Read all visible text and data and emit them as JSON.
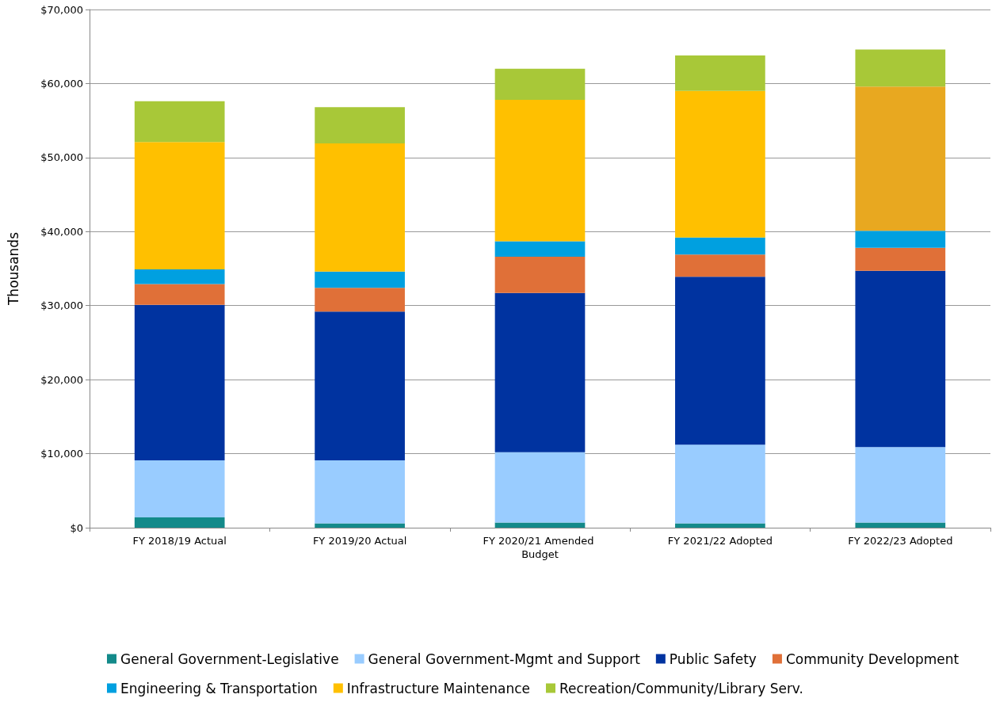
{
  "chart_data": {
    "type": "bar",
    "stacked": true,
    "ylabel": "Thousands",
    "categories": [
      "FY 2018/19 Actual",
      "FY 2019/20 Actual",
      "FY 2020/21 Amended Budget",
      "FY 2021/22 Adopted",
      "FY 2022/23 Adopted"
    ],
    "series": [
      {
        "name": "General Government-Legislative",
        "color": "#138a8a",
        "values": [
          1400,
          600,
          700,
          600,
          700
        ]
      },
      {
        "name": "General Government-Mgmt and Support",
        "color": "#99ccff",
        "values": [
          7700,
          8500,
          9500,
          10600,
          10200
        ]
      },
      {
        "name": "Public Safety",
        "color": "#0033a0",
        "values": [
          21000,
          20100,
          21500,
          22700,
          23800
        ]
      },
      {
        "name": "Community Development",
        "color": "#e07038",
        "values": [
          2800,
          3200,
          4900,
          3000,
          3100
        ]
      },
      {
        "name": "Engineering & Transportation",
        "color": "#00a0e0",
        "values": [
          2000,
          2200,
          2100,
          2300,
          2300
        ]
      },
      {
        "name": "Infrastructure Maintenance",
        "color": "#ffc000",
        "colors": [
          "#ffc000",
          "#ffc000",
          "#ffc000",
          "#ffc000",
          "#e8a820"
        ],
        "values": [
          17200,
          17300,
          19100,
          19800,
          19500
        ]
      },
      {
        "name": "Recreation/Community/Library Serv.",
        "color": "#a8c838",
        "values": [
          5500,
          4900,
          4200,
          4800,
          5000
        ]
      }
    ],
    "ylim": [
      0,
      70000
    ],
    "yticks": [
      {
        "value": 0,
        "label": "$0"
      },
      {
        "value": 10000,
        "label": "$10,000"
      },
      {
        "value": 20000,
        "label": "$20,000"
      },
      {
        "value": 30000,
        "label": "$30,000"
      },
      {
        "value": 40000,
        "label": "$40,000"
      },
      {
        "value": 50000,
        "label": "$50,000"
      },
      {
        "value": 60000,
        "label": "$60,000"
      },
      {
        "value": 70000,
        "label": "$70,000"
      }
    ],
    "grid": "y",
    "legend": "bottom"
  }
}
